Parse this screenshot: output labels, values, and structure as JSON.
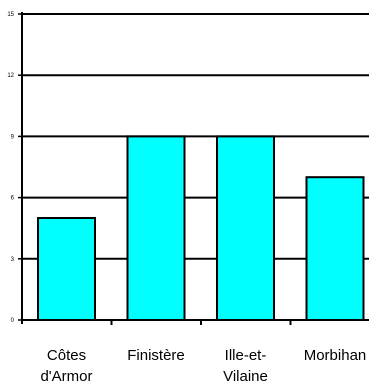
{
  "chart_data": {
    "type": "bar",
    "categories": [
      [
        "Côtes",
        "d'Armor"
      ],
      [
        "Finistère"
      ],
      [
        "Ille-et-",
        "Vilaine"
      ],
      [
        "Morbihan"
      ]
    ],
    "values": [
      5,
      9,
      9,
      7
    ],
    "ylim": [
      0,
      15
    ],
    "yticks": [
      "0",
      "3",
      "6",
      "9",
      "12",
      "15"
    ],
    "grid": true,
    "legend": "none",
    "colors": {
      "bar_fill": "#00ffff",
      "bar_stroke": "#000000",
      "grid": "#000000",
      "axis": "#000000"
    }
  }
}
